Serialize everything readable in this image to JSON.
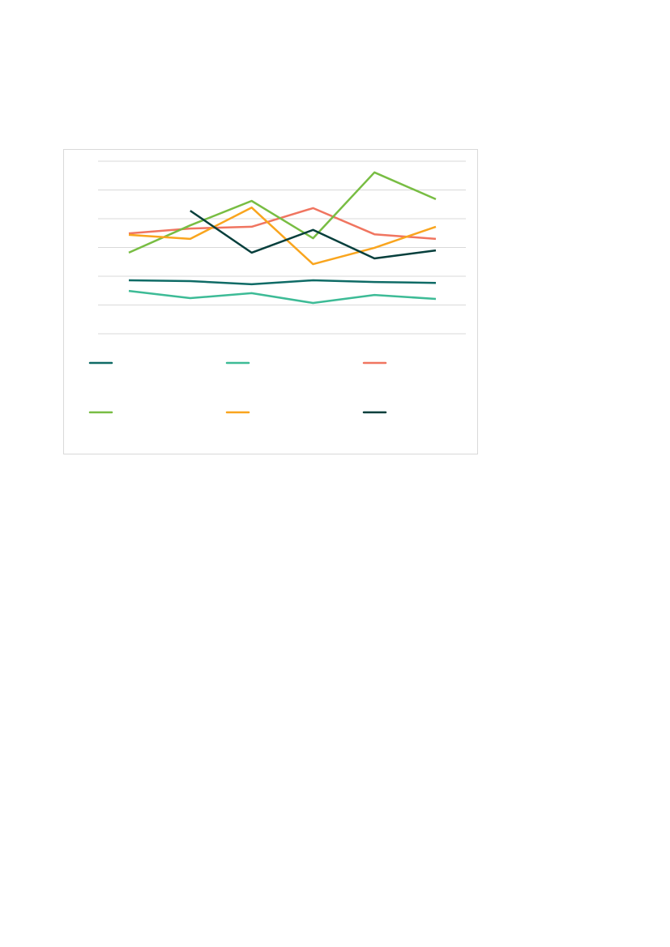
{
  "chart_data": {
    "type": "line",
    "title": "",
    "xlabel": "",
    "ylabel": "",
    "x": [
      1,
      2,
      3,
      4,
      5,
      6
    ],
    "ylim": [
      0,
      6
    ],
    "grid": true,
    "legend": "bottom",
    "series": [
      {
        "color": "#0f6b66",
        "values": [
          1.86,
          1.83,
          1.72,
          1.86,
          1.8,
          1.77
        ]
      },
      {
        "color": "#3dbb96",
        "values": [
          1.49,
          1.24,
          1.41,
          1.07,
          1.35,
          1.21
        ]
      },
      {
        "color": "#f07560",
        "values": [
          3.49,
          3.66,
          3.72,
          4.37,
          3.46,
          3.3
        ]
      },
      {
        "color": "#78bd43",
        "values": [
          2.82,
          3.77,
          4.62,
          3.32,
          5.61,
          4.68
        ]
      },
      {
        "color": "#f9a51e",
        "values": [
          3.44,
          3.3,
          4.39,
          2.42,
          2.99,
          3.72
        ]
      },
      {
        "color": "#063f3c",
        "values": [
          null,
          4.28,
          2.82,
          3.61,
          2.62,
          2.9
        ]
      }
    ]
  }
}
